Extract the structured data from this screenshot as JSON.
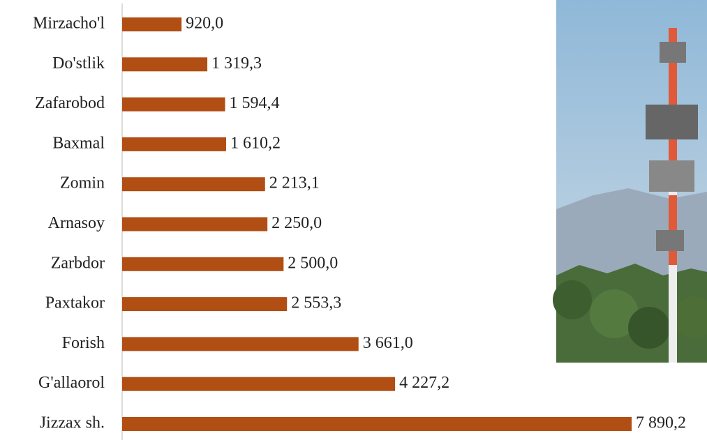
{
  "chart_data": {
    "type": "bar",
    "orientation": "horizontal",
    "categories": [
      "Mirzacho'l",
      "Do'stlik",
      "Zafarobod",
      "Baxmal",
      "Zomin",
      "Arnasoy",
      "Zarbdor",
      "Paxtakor",
      "Forish",
      "G'allaorol",
      "Jizzax sh."
    ],
    "values": [
      920.0,
      1319.3,
      1594.4,
      1610.2,
      2213.1,
      2250.0,
      2500.0,
      2553.3,
      3661.0,
      4227.2,
      7890.2
    ],
    "value_labels": [
      "920,0",
      "1 319,3",
      "1 594,4",
      "1 610,2",
      "2 213,1",
      "2 250,0",
      "2 500,0",
      "2 553,3",
      "3 661,0",
      "4 227,2",
      "7 890,2"
    ],
    "color": "#b14e14"
  }
}
